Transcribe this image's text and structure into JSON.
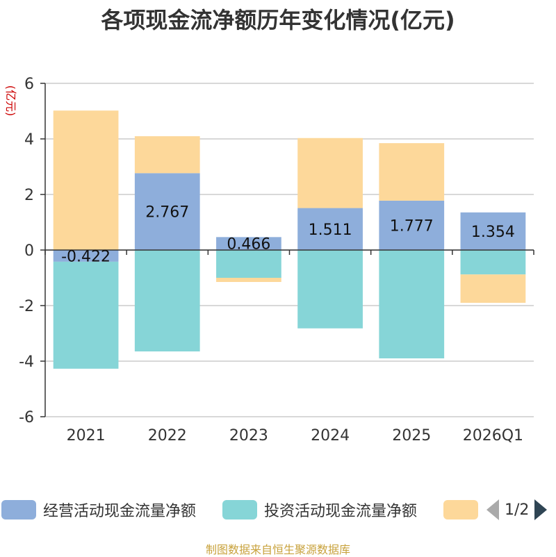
{
  "chart_data": {
    "type": "bar",
    "stacked": true,
    "title": "各项现金流净额历年变化情况(亿元)",
    "ylabel": "(亿元)",
    "ylim": [
      -6,
      6
    ],
    "yticks": [
      6,
      4,
      2,
      0,
      -2,
      -4,
      -6
    ],
    "categories": [
      "2021",
      "2022",
      "2023",
      "2024",
      "2025",
      "2026Q1"
    ],
    "series": [
      {
        "name": "经营活动现金流量净额",
        "color": "#8eaedb",
        "values": [
          -0.422,
          2.767,
          0.466,
          1.511,
          1.777,
          1.354
        ],
        "labels": [
          "-0.422",
          "2.767",
          "0.466",
          "1.511",
          "1.777",
          "1.354"
        ]
      },
      {
        "name": "投资活动现金流量净额",
        "color": "#86d5d7",
        "values": [
          -3.85,
          -3.65,
          -1.0,
          -2.82,
          -3.9,
          -0.88
        ]
      },
      {
        "name": "",
        "color": "#fdd89a",
        "values": [
          5.02,
          1.33,
          -0.15,
          2.52,
          2.07,
          -1.02
        ]
      }
    ],
    "grid": true,
    "legend_position": "bottom"
  },
  "legend": {
    "pager": "1/2",
    "prev_icon": "triangle-left-icon",
    "next_icon": "triangle-right-icon"
  },
  "source": "制图数据来自恒生聚源数据库"
}
